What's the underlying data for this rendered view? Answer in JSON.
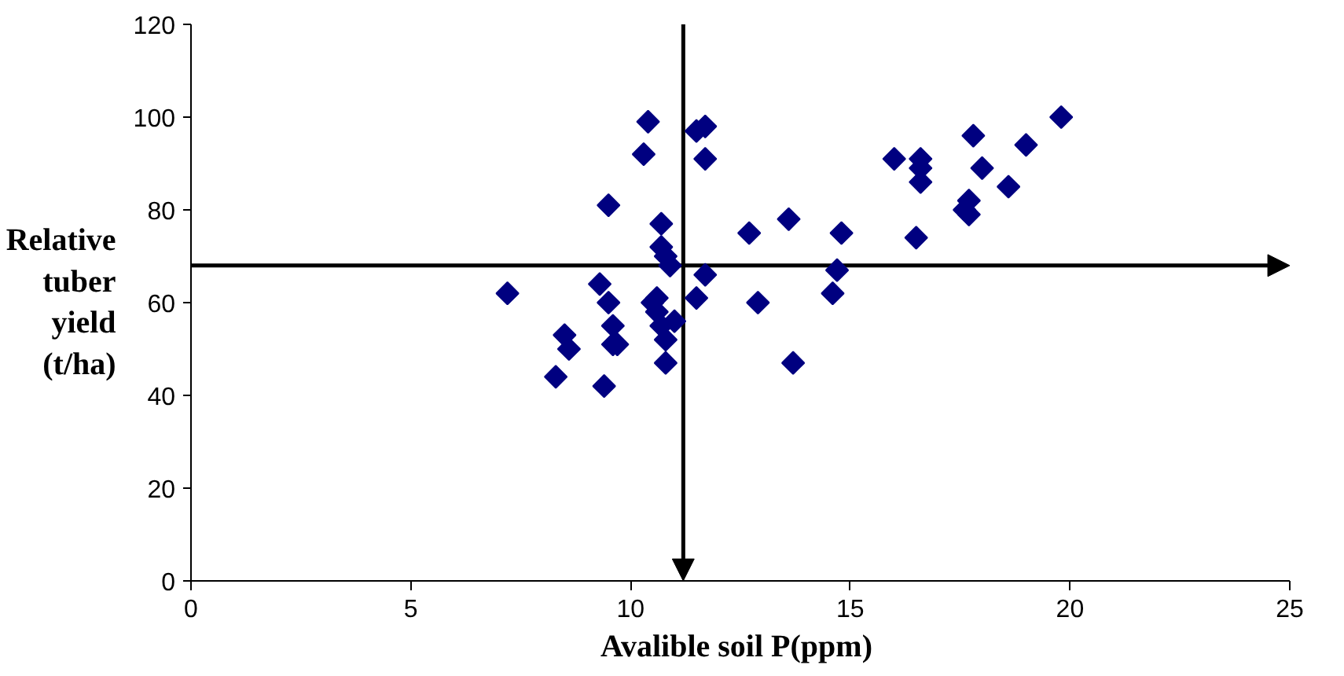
{
  "chart_data": {
    "type": "scatter",
    "xlabel": "Avalible  soil P(ppm)",
    "ylabel": "Relative\ntuber\nyield\n(t/ha)",
    "xlim": [
      0,
      25
    ],
    "ylim": [
      0,
      120
    ],
    "xticks": [
      0,
      5,
      10,
      15,
      20,
      25
    ],
    "yticks": [
      0,
      20,
      40,
      60,
      80,
      100,
      120
    ],
    "grid": false,
    "marker": "diamond",
    "series": [
      {
        "color": "#000080",
        "x": [
          7.2,
          8.3,
          8.5,
          8.6,
          9.3,
          9.4,
          9.5,
          9.5,
          9.6,
          9.6,
          9.7,
          10.3,
          10.4,
          10.5,
          10.6,
          10.6,
          10.7,
          10.7,
          10.7,
          10.8,
          10.8,
          10.8,
          10.9,
          11.0,
          11.5,
          11.7,
          11.7,
          11.5,
          11.7,
          12.7,
          12.9,
          13.6,
          13.7,
          14.6,
          14.7,
          14.8,
          16.0,
          16.5,
          16.6,
          16.6,
          16.6,
          17.6,
          17.7,
          17.7,
          17.8,
          18.0,
          18.6,
          19.0,
          19.8
        ],
        "values": [
          62,
          44,
          53,
          50,
          64,
          42,
          81,
          60,
          55,
          51,
          51,
          92,
          99,
          60,
          61,
          58,
          77,
          72,
          55,
          52,
          47,
          70,
          68,
          56,
          97,
          98,
          91,
          61,
          66,
          75,
          60,
          78,
          47,
          62,
          67,
          75,
          91,
          74,
          91,
          89,
          86,
          80,
          79,
          82,
          96,
          89,
          85,
          94,
          100
        ]
      }
    ],
    "ref_lines": [
      {
        "axis": "y",
        "value": 68,
        "label": null,
        "color": "#000000"
      },
      {
        "axis": "x",
        "value": 11.2,
        "label": null,
        "color": "#000000"
      }
    ]
  }
}
